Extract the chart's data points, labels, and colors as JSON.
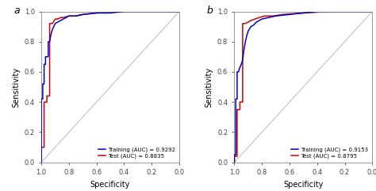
{
  "panel_a": {
    "label": "a",
    "legend_label_train": "Training (AUC) = 0.9292",
    "legend_label_test": "Test (AUC) = 0.8835",
    "train_color": "#0000CC",
    "test_color": "#CC0000"
  },
  "panel_b": {
    "label": "b",
    "legend_label_train": "Training (AUC) = 0.9153",
    "legend_label_test": "Test (AUC) = 0.8795",
    "train_color": "#0000CC",
    "test_color": "#CC0000"
  },
  "diag_color": "#C8C8C8",
  "bg_color": "#FFFFFF",
  "xlabel": "Specificity",
  "ylabel": "Sensitivity",
  "panel_a_train_fpr": [
    0.0,
    0.0,
    0.01,
    0.01,
    0.02,
    0.02,
    0.03,
    0.03,
    0.04,
    0.05,
    0.05,
    0.06,
    0.07,
    0.08,
    0.09,
    0.1,
    0.12,
    0.14,
    0.16,
    0.18,
    0.2,
    0.25,
    0.3,
    0.4,
    0.5,
    0.6,
    0.8,
    1.0
  ],
  "panel_a_train_tpr": [
    0.0,
    0.42,
    0.42,
    0.52,
    0.52,
    0.65,
    0.65,
    0.7,
    0.7,
    0.7,
    0.8,
    0.8,
    0.85,
    0.88,
    0.9,
    0.92,
    0.93,
    0.94,
    0.95,
    0.96,
    0.97,
    0.97,
    0.98,
    0.99,
    0.99,
    1.0,
    1.0,
    1.0
  ],
  "panel_a_test_fpr": [
    0.0,
    0.0,
    0.02,
    0.02,
    0.04,
    0.04,
    0.06,
    0.06,
    0.08,
    0.1,
    0.12,
    0.14,
    0.16,
    0.2,
    0.25,
    0.3,
    0.4,
    0.6,
    0.8,
    1.0
  ],
  "panel_a_test_tpr": [
    0.0,
    0.1,
    0.1,
    0.4,
    0.4,
    0.44,
    0.44,
    0.92,
    0.92,
    0.95,
    0.95,
    0.96,
    0.96,
    0.97,
    0.97,
    0.98,
    0.99,
    1.0,
    1.0,
    1.0
  ],
  "panel_b_train_fpr": [
    0.0,
    0.0,
    0.01,
    0.01,
    0.02,
    0.02,
    0.03,
    0.04,
    0.05,
    0.06,
    0.07,
    0.08,
    0.09,
    0.1,
    0.12,
    0.14,
    0.16,
    0.2,
    0.25,
    0.3,
    0.4,
    0.5,
    0.6,
    0.8,
    1.0
  ],
  "panel_b_train_tpr": [
    0.0,
    0.05,
    0.05,
    0.42,
    0.42,
    0.6,
    0.6,
    0.63,
    0.65,
    0.68,
    0.75,
    0.8,
    0.84,
    0.87,
    0.9,
    0.91,
    0.93,
    0.95,
    0.96,
    0.97,
    0.98,
    0.99,
    1.0,
    1.0,
    1.0
  ],
  "panel_b_test_fpr": [
    0.0,
    0.0,
    0.02,
    0.02,
    0.04,
    0.04,
    0.06,
    0.06,
    0.08,
    0.1,
    0.12,
    0.15,
    0.18,
    0.22,
    0.28,
    0.35,
    0.5,
    0.7,
    1.0
  ],
  "panel_b_test_tpr": [
    0.0,
    0.04,
    0.04,
    0.35,
    0.35,
    0.4,
    0.4,
    0.92,
    0.92,
    0.93,
    0.94,
    0.95,
    0.96,
    0.97,
    0.97,
    0.98,
    0.99,
    1.0,
    1.0
  ]
}
